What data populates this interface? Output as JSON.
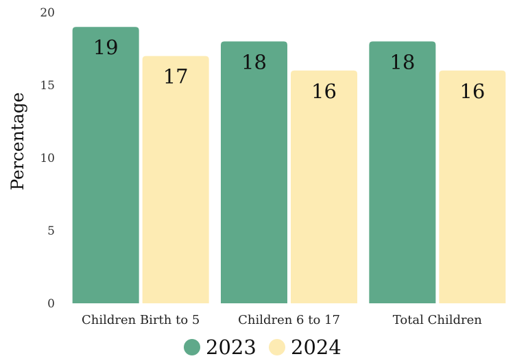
{
  "chart_data": {
    "type": "bar",
    "title": "",
    "xlabel": "",
    "ylabel": "Percentage",
    "ylim": [
      0,
      20
    ],
    "yticks": [
      0,
      5,
      10,
      15,
      20
    ],
    "categories": [
      "Children Birth to 5",
      "Children 6 to 17",
      "Total Children"
    ],
    "series": [
      {
        "name": "2023",
        "values": [
          19,
          18,
          18
        ],
        "color": "#5fa98a"
      },
      {
        "name": "2024",
        "values": [
          17,
          16,
          16
        ],
        "color": "#fdebb3"
      }
    ],
    "legend_position": "bottom",
    "grid": false,
    "data_labels": true
  }
}
